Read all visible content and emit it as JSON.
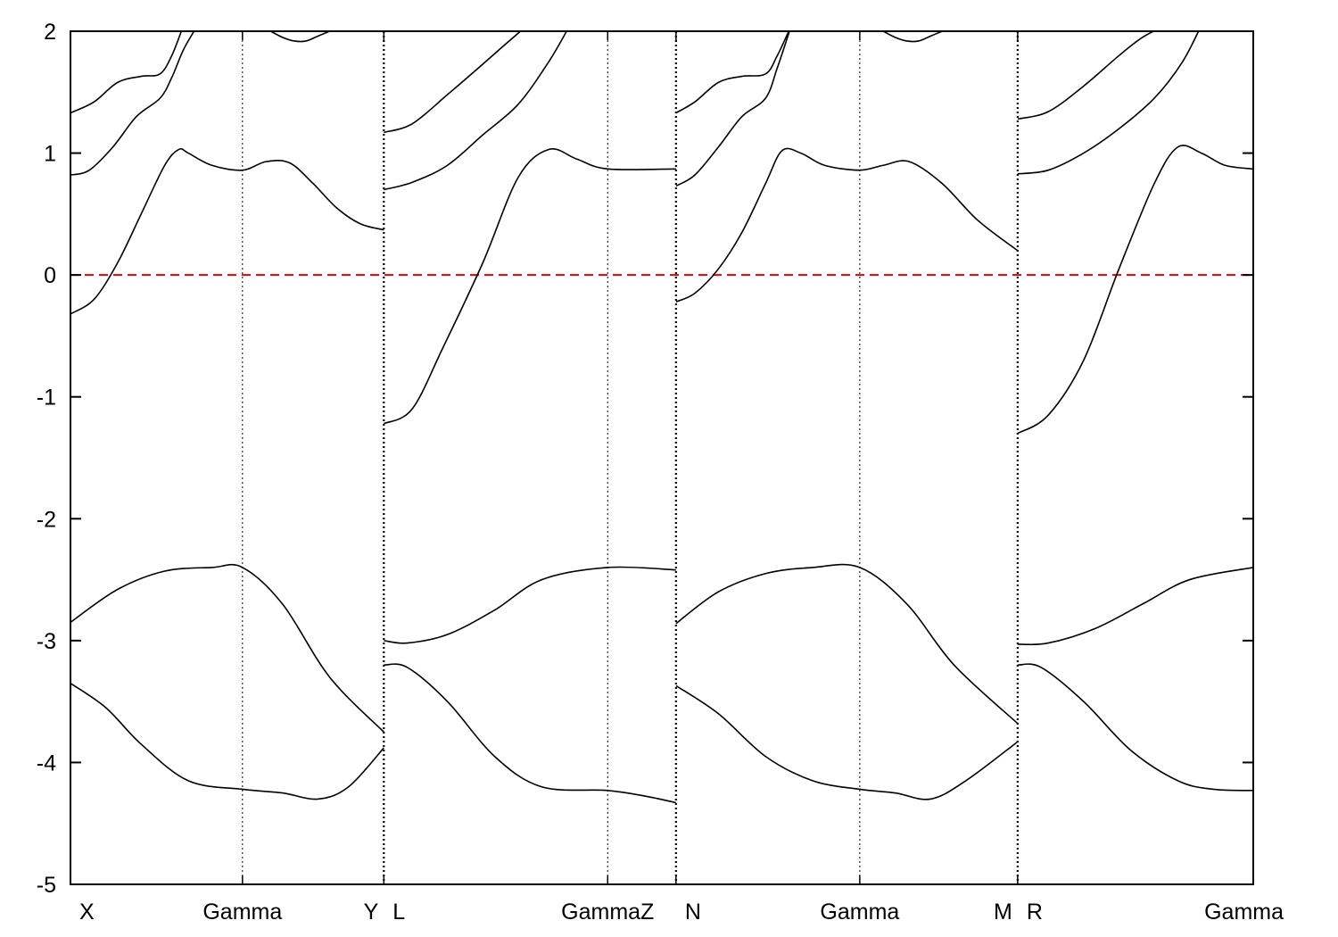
{
  "chart_data": {
    "type": "line",
    "title": "",
    "xlabel": "",
    "ylabel": "",
    "ylim": [
      -5,
      2
    ],
    "y_ticks": [
      2,
      1,
      0,
      -1,
      -2,
      -3,
      -4,
      -5
    ],
    "grid": false,
    "legend": "none",
    "x_range": [
      0,
      5.02
    ],
    "k_labels": [
      {
        "x": 0.0,
        "text": "X",
        "align": "start"
      },
      {
        "x": 0.73,
        "text": "Gamma",
        "align": "middle"
      },
      {
        "x": 1.33,
        "text": "Y",
        "align": "end"
      },
      {
        "x": 1.33,
        "text": "L",
        "align": "start"
      },
      {
        "x": 2.28,
        "text": "GammaZ",
        "align": "middle"
      },
      {
        "x": 2.57,
        "text": "N",
        "align": "start"
      },
      {
        "x": 3.35,
        "text": "Gamma",
        "align": "middle"
      },
      {
        "x": 4.02,
        "text": "M",
        "align": "end"
      },
      {
        "x": 4.02,
        "text": "R",
        "align": "start"
      },
      {
        "x": 5.02,
        "text": "Gamma",
        "align": "end"
      }
    ],
    "segment_boundaries": [
      1.33,
      2.57,
      4.02
    ],
    "high_symmetry_lines": [
      0.73,
      2.28,
      3.35
    ],
    "fermi_level": {
      "y": 0,
      "color": "#e00000",
      "style": "dashed"
    },
    "colors": {
      "bands": "#000000",
      "fermi": "#e00000",
      "axes": "#000000"
    },
    "series": [
      {
        "x": [
          0,
          0.1,
          0.2,
          0.3,
          0.4,
          0.46,
          0.5,
          0.6,
          0.73,
          0.83,
          0.93,
          1.03,
          1.13,
          1.23,
          1.33
        ],
        "y": [
          -0.32,
          -0.2,
          0.1,
          0.5,
          0.9,
          1.03,
          1.0,
          0.9,
          0.86,
          0.93,
          0.92,
          0.75,
          0.55,
          0.42,
          0.37
        ]
      },
      {
        "x": [
          0,
          0.08,
          0.18,
          0.28,
          0.38,
          0.43,
          0.48,
          0.54
        ],
        "y": [
          0.82,
          0.86,
          1.05,
          1.3,
          1.45,
          1.62,
          1.85,
          2.05
        ]
      },
      {
        "x": [
          0,
          0.1,
          0.2,
          0.3,
          0.38,
          0.43,
          0.48
        ],
        "y": [
          1.33,
          1.42,
          1.58,
          1.63,
          1.65,
          1.8,
          2.05
        ]
      },
      {
        "x": [
          0.85,
          0.9,
          0.95,
          1.0,
          1.05,
          1.1
        ],
        "y": [
          2.0,
          1.95,
          1.92,
          1.92,
          1.96,
          2.0
        ]
      },
      {
        "x": [
          0,
          0.2,
          0.4,
          0.6,
          0.73,
          0.9,
          1.1,
          1.33
        ],
        "y": [
          -2.85,
          -2.58,
          -2.43,
          -2.4,
          -2.4,
          -2.7,
          -3.3,
          -3.75
        ]
      },
      {
        "x": [
          0,
          0.15,
          0.3,
          0.5,
          0.73,
          0.9,
          1.05,
          1.18,
          1.33
        ],
        "y": [
          -3.35,
          -3.55,
          -3.85,
          -4.15,
          -4.22,
          -4.25,
          -4.3,
          -4.2,
          -3.88
        ]
      },
      {
        "x": [
          1.33,
          1.45,
          1.58,
          1.75,
          1.9,
          2.03,
          2.15,
          2.28,
          2.57
        ],
        "y": [
          -1.22,
          -1.1,
          -0.6,
          0.1,
          0.8,
          1.03,
          0.95,
          0.87,
          0.87
        ]
      },
      {
        "x": [
          1.33,
          1.45,
          1.6,
          1.75,
          1.9,
          2.03,
          2.12
        ],
        "y": [
          0.7,
          0.76,
          0.9,
          1.15,
          1.4,
          1.75,
          2.05
        ]
      },
      {
        "x": [
          1.33,
          1.45,
          1.6,
          1.75,
          1.85,
          1.94
        ],
        "y": [
          1.17,
          1.24,
          1.48,
          1.73,
          1.9,
          2.05
        ]
      },
      {
        "x": [
          1.33,
          1.43,
          1.6,
          1.8,
          2.0,
          2.28,
          2.57
        ],
        "y": [
          -3.0,
          -3.02,
          -2.95,
          -2.75,
          -2.5,
          -2.4,
          -2.42
        ]
      },
      {
        "x": [
          1.33,
          1.43,
          1.6,
          1.8,
          2.0,
          2.28,
          2.45,
          2.57
        ],
        "y": [
          -3.2,
          -3.22,
          -3.5,
          -3.95,
          -4.2,
          -4.23,
          -4.28,
          -4.33
        ]
      },
      {
        "x": [
          2.57,
          2.65,
          2.75,
          2.85,
          2.95,
          3.02,
          3.1,
          3.2,
          3.35,
          3.45,
          3.56,
          3.7,
          3.85,
          4.02
        ],
        "y": [
          -0.22,
          -0.15,
          0.05,
          0.35,
          0.75,
          1.02,
          1.0,
          0.9,
          0.86,
          0.9,
          0.93,
          0.75,
          0.45,
          0.2
        ]
      },
      {
        "x": [
          2.57,
          2.65,
          2.75,
          2.85,
          2.95,
          3.0,
          3.06
        ],
        "y": [
          0.73,
          0.82,
          1.05,
          1.3,
          1.45,
          1.7,
          2.05
        ]
      },
      {
        "x": [
          2.57,
          2.65,
          2.75,
          2.85,
          2.95,
          3.0,
          3.06
        ],
        "y": [
          1.33,
          1.42,
          1.58,
          1.63,
          1.65,
          1.8,
          2.05
        ]
      },
      {
        "x": [
          3.45,
          3.5,
          3.55,
          3.6,
          3.65,
          3.7
        ],
        "y": [
          2.0,
          1.95,
          1.92,
          1.92,
          1.96,
          2.0
        ]
      },
      {
        "x": [
          2.57,
          2.75,
          2.95,
          3.15,
          3.35,
          3.55,
          3.75,
          4.02
        ],
        "y": [
          -2.86,
          -2.6,
          -2.45,
          -2.4,
          -2.4,
          -2.7,
          -3.2,
          -3.68
        ]
      },
      {
        "x": [
          2.57,
          2.75,
          2.95,
          3.15,
          3.35,
          3.5,
          3.65,
          3.8,
          4.02
        ],
        "y": [
          -3.37,
          -3.6,
          -3.95,
          -4.15,
          -4.22,
          -4.25,
          -4.3,
          -4.15,
          -3.83
        ]
      },
      {
        "x": [
          4.02,
          4.15,
          4.3,
          4.45,
          4.6,
          4.7,
          4.8,
          4.9,
          5.02
        ],
        "y": [
          -1.3,
          -1.15,
          -0.7,
          0.05,
          0.75,
          1.05,
          1.0,
          0.9,
          0.87
        ]
      },
      {
        "x": [
          4.02,
          4.15,
          4.3,
          4.45,
          4.6,
          4.72,
          4.8
        ],
        "y": [
          0.83,
          0.86,
          1.0,
          1.2,
          1.45,
          1.75,
          2.05
        ]
      },
      {
        "x": [
          4.02,
          4.15,
          4.3,
          4.45,
          4.55,
          4.65
        ],
        "y": [
          1.28,
          1.34,
          1.55,
          1.8,
          1.95,
          2.05
        ]
      },
      {
        "x": [
          4.02,
          4.15,
          4.35,
          4.55,
          4.75,
          5.02
        ],
        "y": [
          -3.03,
          -3.02,
          -2.9,
          -2.7,
          -2.5,
          -2.4
        ]
      },
      {
        "x": [
          4.02,
          4.12,
          4.3,
          4.5,
          4.7,
          4.85,
          5.02
        ],
        "y": [
          -3.2,
          -3.22,
          -3.5,
          -3.9,
          -4.15,
          -4.22,
          -4.23
        ]
      }
    ]
  }
}
